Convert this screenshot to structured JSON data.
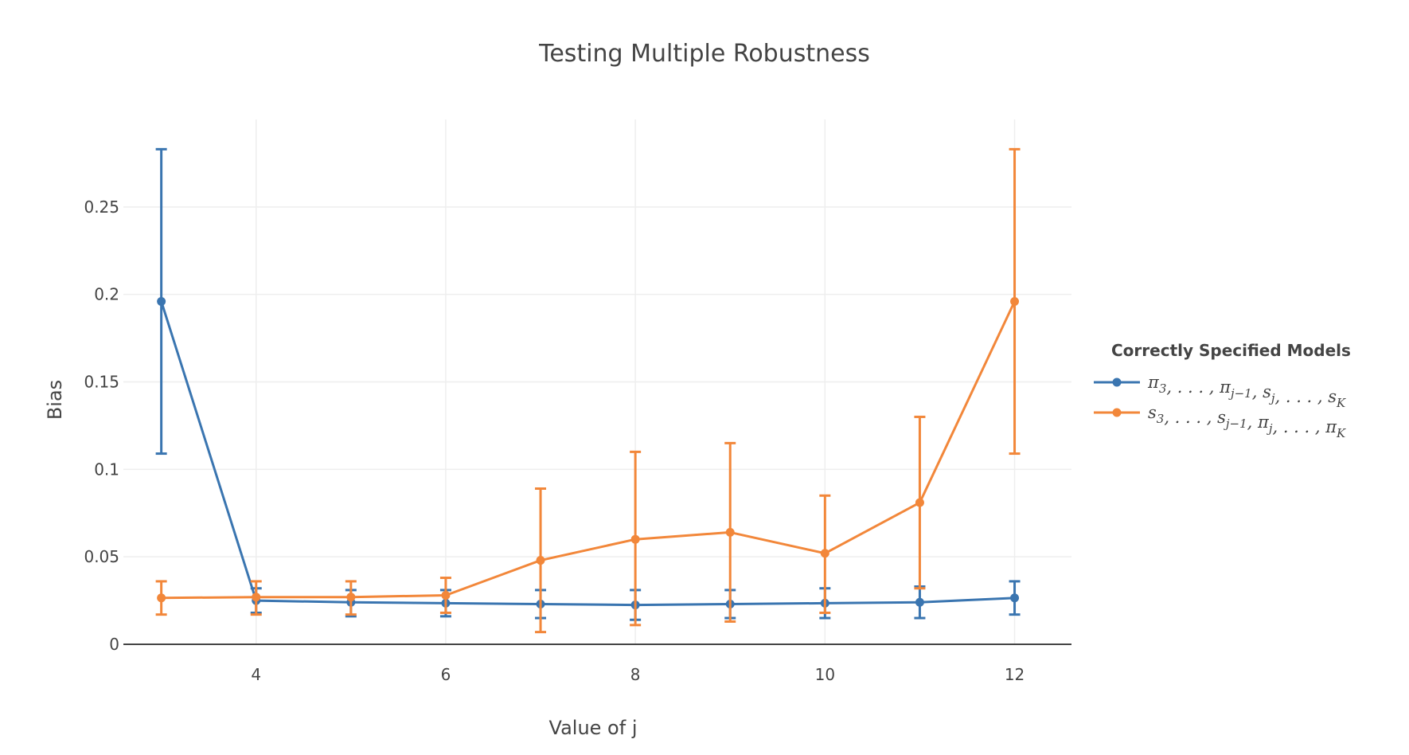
{
  "chart_data": {
    "type": "line",
    "title": "Testing Multiple Robustness",
    "xlabel": "Value of j",
    "ylabel": "Bias",
    "xlim": [
      2.6,
      12.6
    ],
    "ylim": [
      0,
      0.3
    ],
    "x_ticks": [
      4,
      6,
      8,
      10,
      12
    ],
    "x_tick_labels": [
      "4",
      "6",
      "8",
      "10",
      "12"
    ],
    "y_ticks": [
      0,
      0.05,
      0.1,
      0.15,
      0.2,
      0.25
    ],
    "y_tick_labels": [
      "0",
      "0.05",
      "0.1",
      "0.15",
      "0.2",
      "0.25"
    ],
    "grid": true,
    "legend": {
      "title": "Correctly Specified Models",
      "placement": "right"
    },
    "series": [
      {
        "name": "π3, . . . , πj−1, sj, . . . , sK",
        "color": "#3a75b0",
        "x": [
          3,
          4,
          5,
          6,
          7,
          8,
          9,
          10,
          11,
          12
        ],
        "y": [
          0.196,
          0.025,
          0.024,
          0.0235,
          0.023,
          0.0225,
          0.023,
          0.0235,
          0.024,
          0.0265
        ],
        "error_upper": [
          0.283,
          0.032,
          0.031,
          0.031,
          0.031,
          0.031,
          0.031,
          0.032,
          0.033,
          0.036
        ],
        "error_lower": [
          0.109,
          0.018,
          0.016,
          0.016,
          0.015,
          0.014,
          0.015,
          0.015,
          0.015,
          0.017
        ]
      },
      {
        "name": "s3, . . . , sj−1, πj, . . . , πK",
        "color": "#f2873a",
        "x": [
          3,
          4,
          5,
          6,
          7,
          8,
          9,
          10,
          11,
          12
        ],
        "y": [
          0.0265,
          0.027,
          0.027,
          0.028,
          0.048,
          0.06,
          0.064,
          0.052,
          0.081,
          0.196
        ],
        "error_upper": [
          0.036,
          0.036,
          0.036,
          0.038,
          0.089,
          0.11,
          0.115,
          0.085,
          0.13,
          0.283
        ],
        "error_lower": [
          0.017,
          0.017,
          0.017,
          0.018,
          0.007,
          0.011,
          0.013,
          0.018,
          0.032,
          0.109
        ]
      }
    ],
    "legend_entries": [
      {
        "color": "#3a75b0",
        "parts": [
          [
            "π",
            "3"
          ],
          [
            ", . . . , ",
            ""
          ],
          [
            "π",
            "j−1"
          ],
          [
            ", ",
            ""
          ],
          [
            "s",
            "j"
          ],
          [
            ", . . . , ",
            ""
          ],
          [
            "s",
            "K"
          ]
        ]
      },
      {
        "color": "#f2873a",
        "parts": [
          [
            "s",
            "3"
          ],
          [
            ", . . . , ",
            ""
          ],
          [
            "s",
            "j−1"
          ],
          [
            ", ",
            ""
          ],
          [
            "π",
            "j"
          ],
          [
            ", . . . , ",
            ""
          ],
          [
            "π",
            "K"
          ]
        ]
      }
    ]
  }
}
